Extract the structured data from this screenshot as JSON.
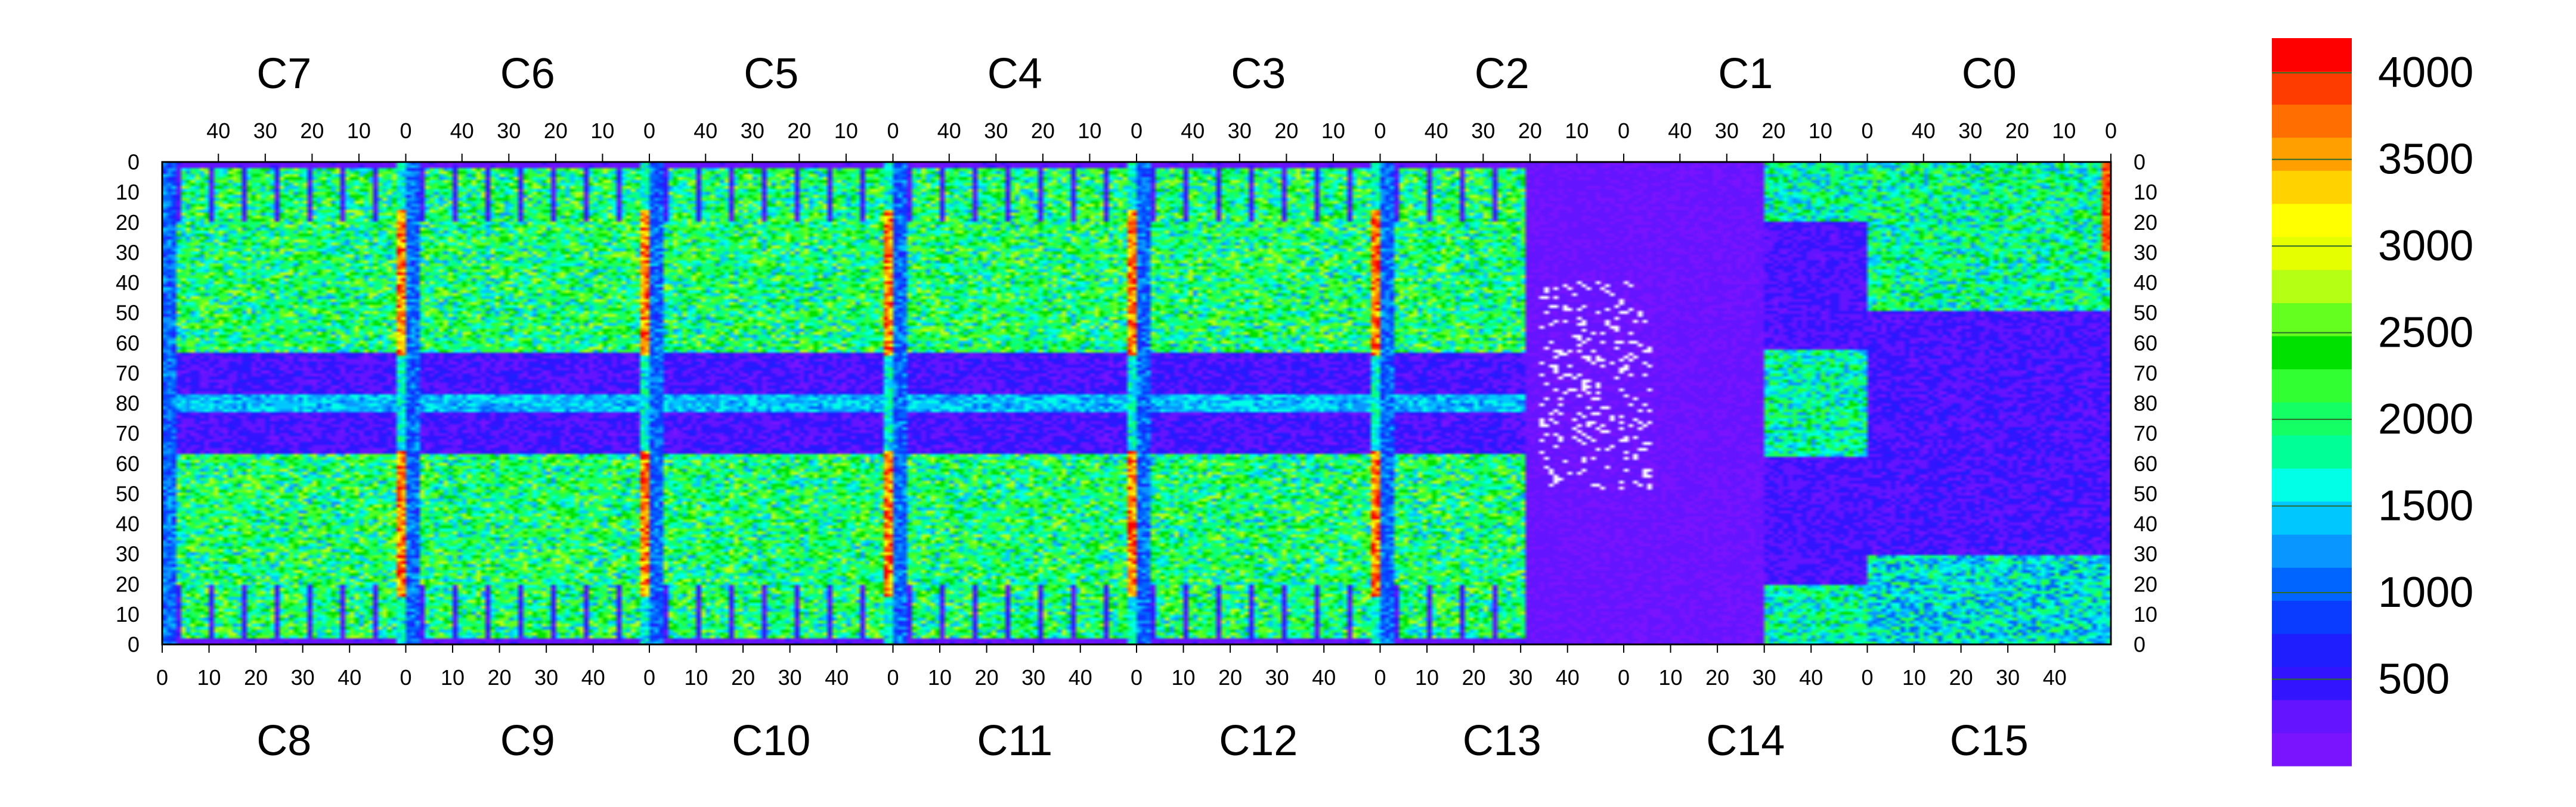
{
  "chart_data": {
    "type": "heatmap",
    "top_chips": [
      "C7",
      "C6",
      "C5",
      "C4",
      "C3",
      "C2",
      "C1",
      "C0"
    ],
    "bottom_chips": [
      "C8",
      "C9",
      "C10",
      "C11",
      "C12",
      "C13",
      "C14",
      "C15"
    ],
    "top_x_ticks": [
      "40",
      "30",
      "20",
      "10",
      "0"
    ],
    "bottom_x_ticks": [
      "0",
      "10",
      "20",
      "30",
      "40"
    ],
    "y_ticks": [
      "0",
      "10",
      "20",
      "30",
      "40",
      "50",
      "60",
      "70",
      "80",
      "70",
      "60",
      "50",
      "40",
      "30",
      "20",
      "10",
      "0"
    ],
    "colorbar": {
      "min": 0,
      "max": 4200,
      "tick_values": [
        500,
        1000,
        1500,
        2000,
        2500,
        3000,
        3500,
        4000
      ],
      "tick_labels": [
        "500",
        "1000",
        "1500",
        "2000",
        "2500",
        "3000",
        "3500",
        "4000"
      ],
      "colors": [
        "#7a14ff",
        "#6414ff",
        "#3214ff",
        "#1e1eff",
        "#0a3cff",
        "#0064ff",
        "#0a96ff",
        "#00c8ff",
        "#00ffe6",
        "#00ff96",
        "#14ff64",
        "#32ff32",
        "#00e100",
        "#64ff1e",
        "#b4ff14",
        "#e6ff00",
        "#ffff00",
        "#ffd200",
        "#ffa000",
        "#ff6e00",
        "#ff3c00",
        "#ff0000"
      ]
    },
    "grid_cols": 416,
    "grid_rows": 162,
    "chip_columns": 52,
    "chip_rows": 80
  }
}
